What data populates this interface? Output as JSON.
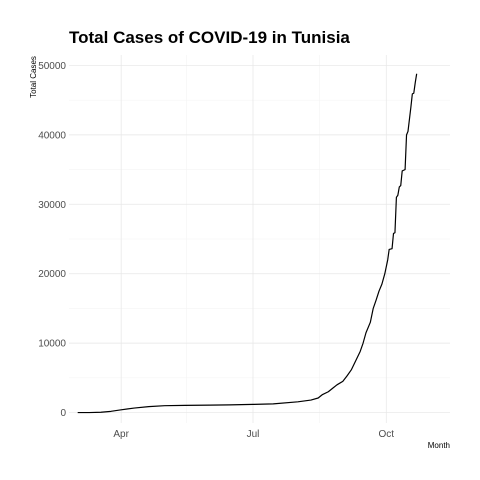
{
  "chart_data": {
    "type": "line",
    "title": "Total Cases of COVID-19 in Tunisia",
    "xlabel": "Month",
    "ylabel": "Total Cases",
    "x_tick_labels": [
      "Apr",
      "Jul",
      "Oct"
    ],
    "x_ticks": [
      "2020-04-01",
      "2020-07-01",
      "2020-10-01"
    ],
    "x_minor_ticks": [
      "2020-05-16",
      "2020-08-16"
    ],
    "xlim": [
      "2020-02-25",
      "2020-11-14"
    ],
    "y_ticks": [
      0,
      10000,
      20000,
      30000,
      40000,
      50000
    ],
    "y_tick_labels": [
      "0",
      "10000",
      "20000",
      "30000",
      "40000",
      "50000"
    ],
    "ylim": [
      -1500,
      51500
    ],
    "grid": true,
    "line_color": "#000000",
    "series": [
      {
        "points": [
          [
            "2020-03-02",
            1
          ],
          [
            "2020-03-10",
            5
          ],
          [
            "2020-03-18",
            50
          ],
          [
            "2020-03-25",
            180
          ],
          [
            "2020-04-01",
            400
          ],
          [
            "2020-04-10",
            650
          ],
          [
            "2020-04-20",
            860
          ],
          [
            "2020-05-01",
            990
          ],
          [
            "2020-05-15",
            1040
          ],
          [
            "2020-06-01",
            1070
          ],
          [
            "2020-06-15",
            1110
          ],
          [
            "2020-07-01",
            1180
          ],
          [
            "2020-07-15",
            1250
          ],
          [
            "2020-08-01",
            1550
          ],
          [
            "2020-08-10",
            1800
          ],
          [
            "2020-08-15",
            2100
          ],
          [
            "2020-08-18",
            2600
          ],
          [
            "2020-08-22",
            3000
          ],
          [
            "2020-08-25",
            3500
          ],
          [
            "2020-08-28",
            4000
          ],
          [
            "2020-09-01",
            4500
          ],
          [
            "2020-09-04",
            5300
          ],
          [
            "2020-09-07",
            6200
          ],
          [
            "2020-09-10",
            7500
          ],
          [
            "2020-09-13",
            8800
          ],
          [
            "2020-09-15",
            10000
          ],
          [
            "2020-09-17",
            11500
          ],
          [
            "2020-09-20",
            13000
          ],
          [
            "2020-09-22",
            15000
          ],
          [
            "2020-09-24",
            16200
          ],
          [
            "2020-09-26",
            17500
          ],
          [
            "2020-09-28",
            18500
          ],
          [
            "2020-09-30",
            20000
          ],
          [
            "2020-10-02",
            22000
          ],
          [
            "2020-10-03",
            23500
          ],
          [
            "2020-10-05",
            23600
          ],
          [
            "2020-10-06",
            25800
          ],
          [
            "2020-10-07",
            25900
          ],
          [
            "2020-10-08",
            31000
          ],
          [
            "2020-10-09",
            31300
          ],
          [
            "2020-10-10",
            32500
          ],
          [
            "2020-10-11",
            32700
          ],
          [
            "2020-10-12",
            34800
          ],
          [
            "2020-10-13",
            34900
          ],
          [
            "2020-10-14",
            35000
          ],
          [
            "2020-10-15",
            40000
          ],
          [
            "2020-10-16",
            40500
          ],
          [
            "2020-10-18",
            44000
          ],
          [
            "2020-10-19",
            45900
          ],
          [
            "2020-10-20",
            46000
          ],
          [
            "2020-10-21",
            47500
          ],
          [
            "2020-10-22",
            48800
          ]
        ]
      }
    ]
  }
}
